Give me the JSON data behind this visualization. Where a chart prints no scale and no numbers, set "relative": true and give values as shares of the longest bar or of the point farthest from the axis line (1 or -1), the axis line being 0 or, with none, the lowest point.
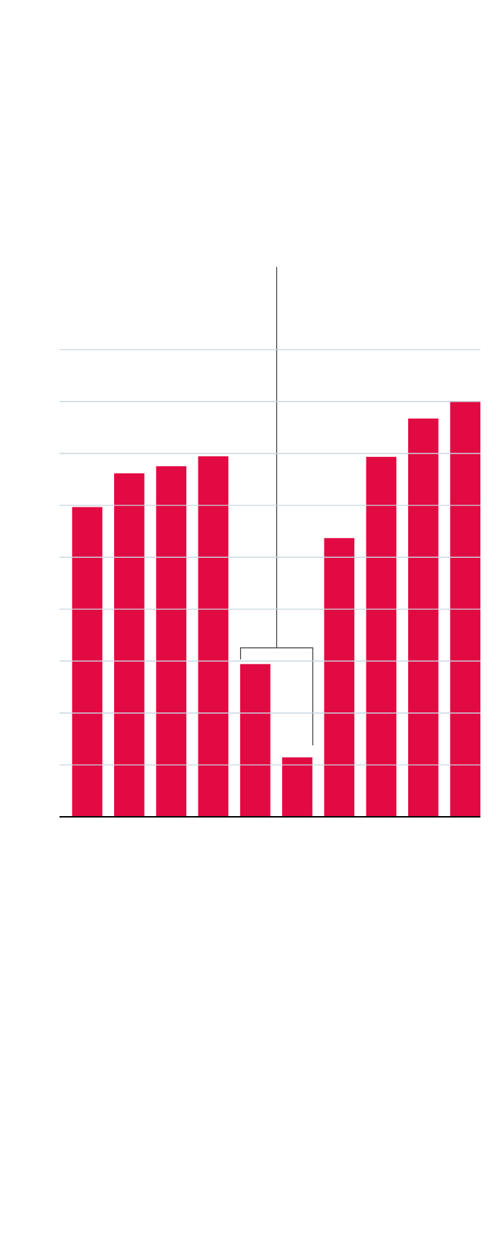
{
  "chart_data": {
    "type": "bar",
    "relative": true,
    "grid": true,
    "color": "#e20a42",
    "categories": [
      null,
      null,
      null,
      null,
      null,
      null,
      null,
      null,
      null,
      null
    ],
    "values": [
      0.746,
      0.827,
      0.844,
      0.868,
      0.368,
      0.143,
      0.671,
      0.867,
      0.959,
      1
    ]
  }
}
